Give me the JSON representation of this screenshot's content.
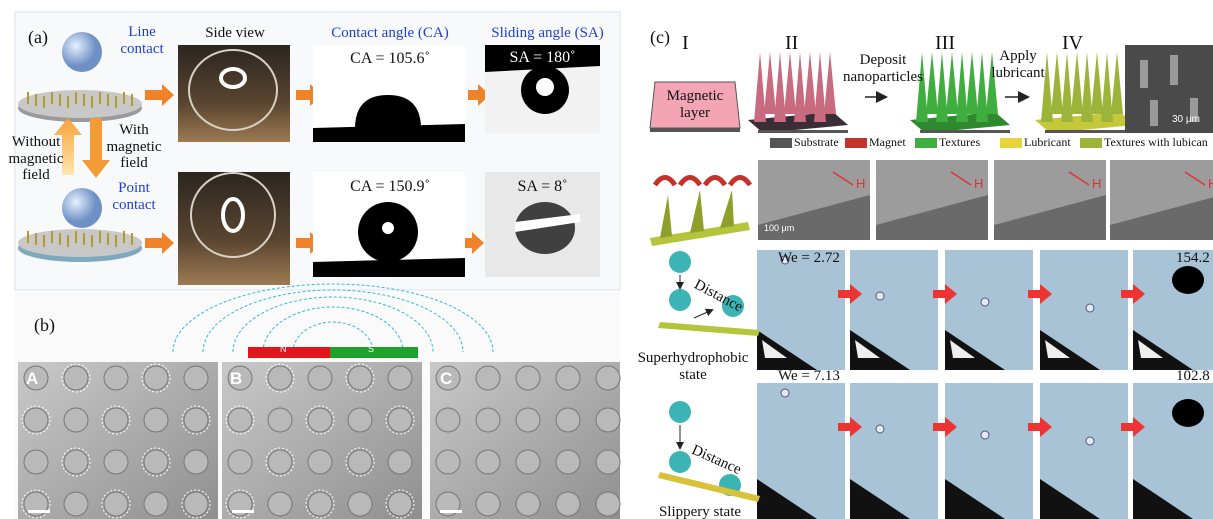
{
  "panel_a": {
    "label": "(a)",
    "line_contact": "Line contact",
    "side_view": "Side view",
    "contact_angle": "Contact angle (CA)",
    "sliding_angle": "Sliding angle (SA)",
    "ca_top": "CA = 105.6˚",
    "sa_top": "SA = 180˚",
    "without_field": "Without magnetic field",
    "with_field": "With magnetic field",
    "point_contact": "Point contact",
    "ca_bottom": "CA = 150.9˚",
    "sa_bottom": "SA = 8˚"
  },
  "panel_b": {
    "label": "(b)",
    "north": "N",
    "south": "S",
    "images": [
      "A",
      "B",
      "C"
    ]
  },
  "panel_c": {
    "label": "(c)",
    "steps": [
      "I",
      "II",
      "III",
      "IV"
    ],
    "magnetic_layer": "Magnetic layer",
    "deposit": "Deposit nanoparticles",
    "apply": "Apply lubricant",
    "sem_scale": "30 μm",
    "legend": [
      "Substrate",
      "Magnet",
      "Textures",
      "Lubricant",
      "Textures with lubican"
    ],
    "field_labels": [
      "H",
      "H",
      "H",
      "H"
    ],
    "field_scale": "100 μm",
    "row1": {
      "we": "We = 2.72",
      "angle": "154.2",
      "distance": "Distance",
      "state": "Superhydrophobic state"
    },
    "row2": {
      "we": "We = 7.13",
      "angle": "102.8",
      "distance": "Distance",
      "state": "Slippery state"
    }
  }
}
